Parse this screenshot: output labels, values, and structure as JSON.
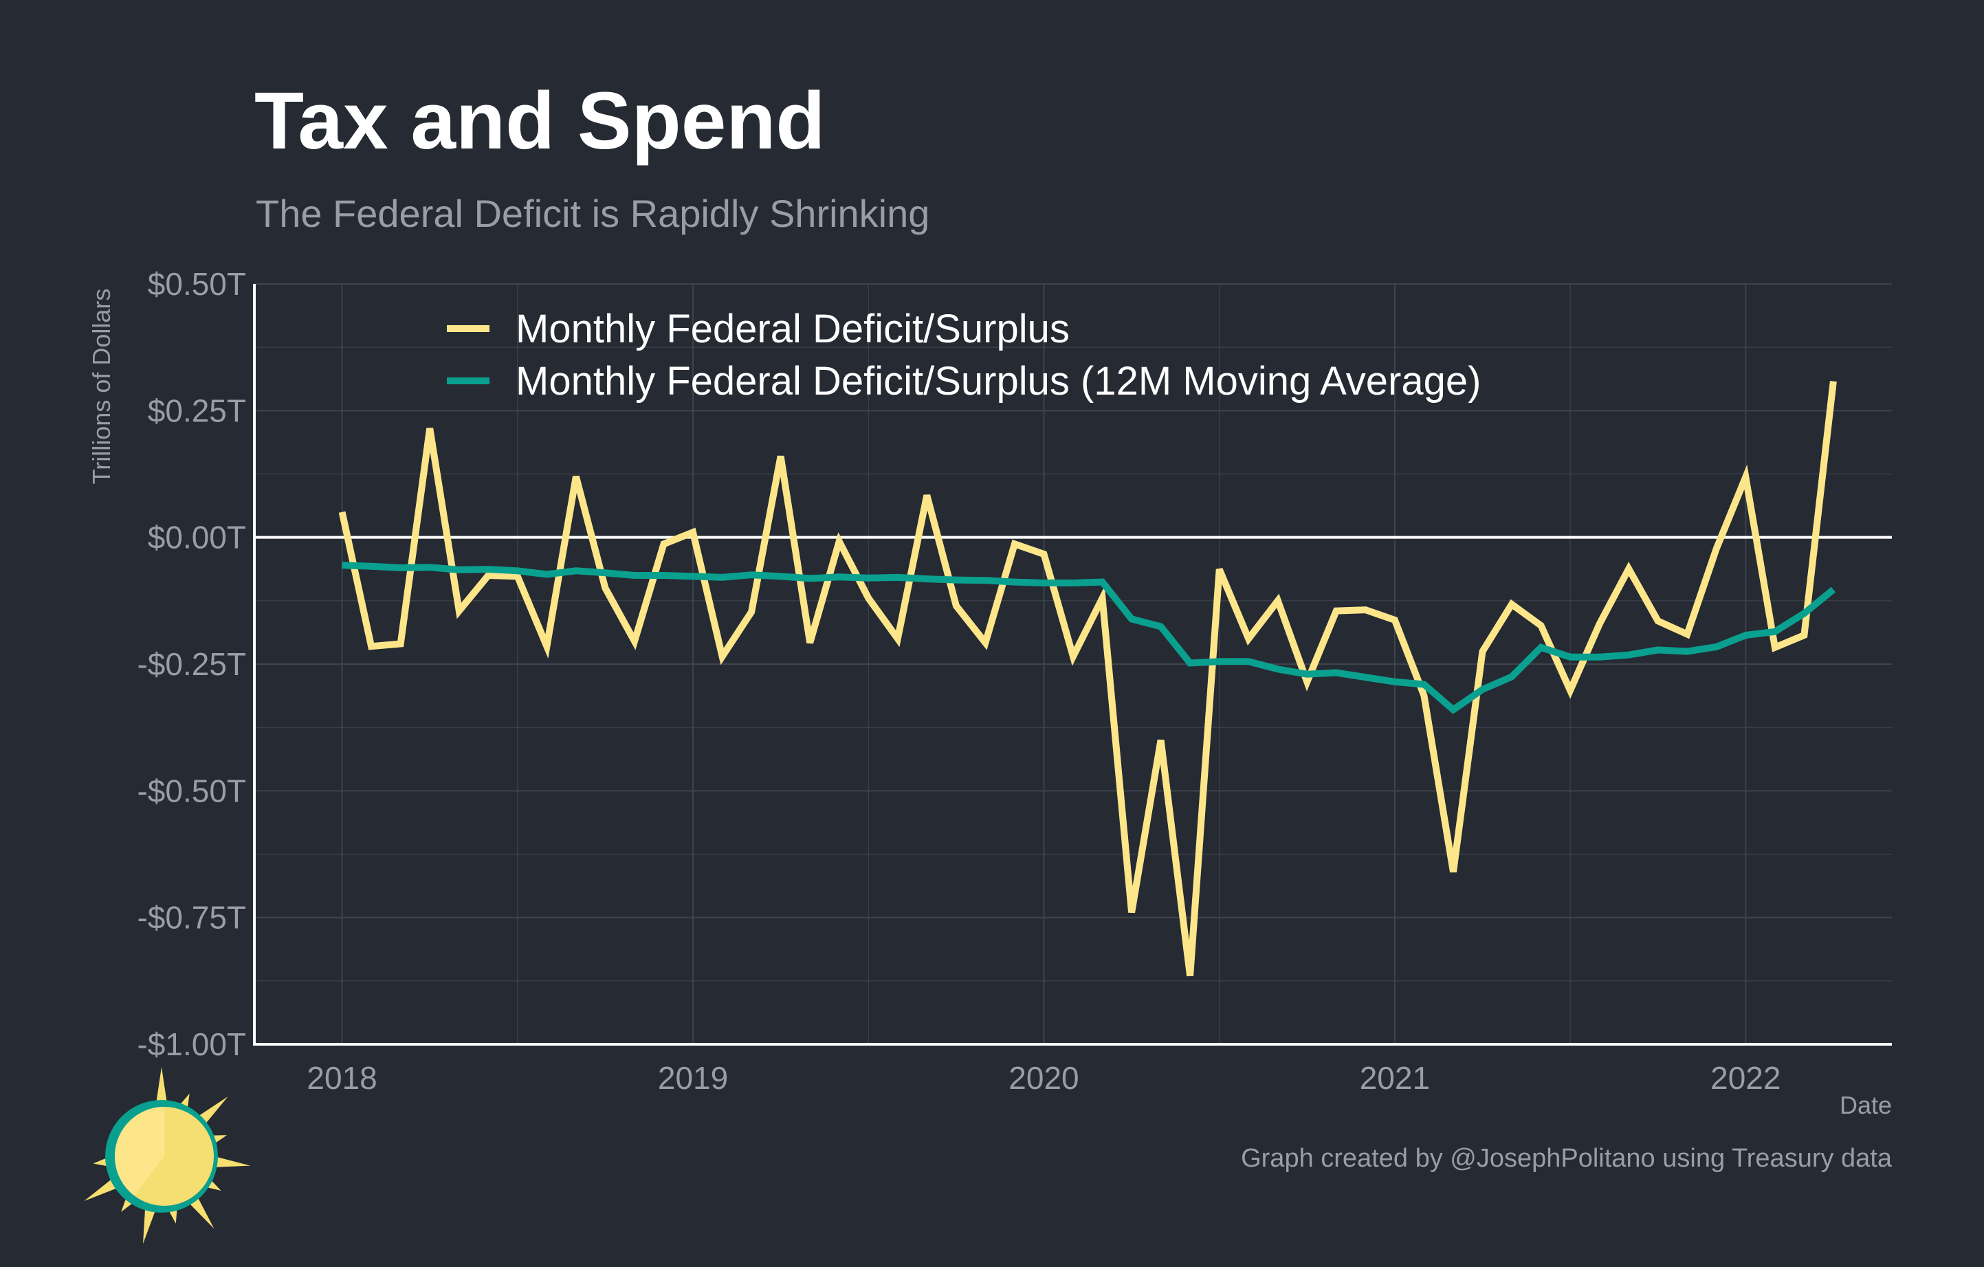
{
  "header": {
    "title": "Tax and Spend",
    "subtitle": "The Federal Deficit is Rapidly Shrinking"
  },
  "footer": {
    "caption": "Graph created by @JosephPolitano using Treasury data"
  },
  "colors": {
    "background": "#252a33",
    "series_monthly": "#fde68a",
    "series_average": "#0aa08f",
    "axis": "#ffffff",
    "grid": "#3e434c",
    "muted_text": "#9a9da3"
  },
  "logo": {
    "icon": "sun-logo-icon"
  },
  "chart_data": {
    "type": "line",
    "title": "Tax and Spend",
    "subtitle": "The Federal Deficit is Rapidly Shrinking",
    "xlabel": "Date",
    "ylabel": "Trillions of Dollars",
    "ylim": [
      -1.0,
      0.5
    ],
    "yticks": [
      0.5,
      0.25,
      0.0,
      -0.25,
      -0.5,
      -0.75,
      -1.0
    ],
    "ytick_labels": [
      "$0.50T",
      "$0.25T",
      "$0.00T",
      "-$0.25T",
      "-$0.50T",
      "-$0.75T",
      "-$1.00T"
    ],
    "xlim": [
      "2017-10",
      "2022-06"
    ],
    "xticks": [
      "2018-01",
      "2019-01",
      "2020-01",
      "2021-01",
      "2022-01"
    ],
    "xtick_labels": [
      "2018",
      "2019",
      "2020",
      "2021",
      "2022"
    ],
    "grid": true,
    "zero_line": true,
    "legend_position": "top-left",
    "x": [
      "2018-01",
      "2018-02",
      "2018-03",
      "2018-04",
      "2018-05",
      "2018-06",
      "2018-07",
      "2018-08",
      "2018-09",
      "2018-10",
      "2018-11",
      "2018-12",
      "2019-01",
      "2019-02",
      "2019-03",
      "2019-04",
      "2019-05",
      "2019-06",
      "2019-07",
      "2019-08",
      "2019-09",
      "2019-10",
      "2019-11",
      "2019-12",
      "2020-01",
      "2020-02",
      "2020-03",
      "2020-04",
      "2020-05",
      "2020-06",
      "2020-07",
      "2020-08",
      "2020-09",
      "2020-10",
      "2020-11",
      "2020-12",
      "2021-01",
      "2021-02",
      "2021-03",
      "2021-04",
      "2021-05",
      "2021-06",
      "2021-07",
      "2021-08",
      "2021-09",
      "2021-10",
      "2021-11",
      "2021-12",
      "2022-01",
      "2022-02",
      "2022-03",
      "2022-04"
    ],
    "series": [
      {
        "name": "Monthly Federal Deficit/Surplus",
        "color": "#fde68a",
        "values": [
          0.05,
          -0.215,
          -0.21,
          0.215,
          -0.145,
          -0.075,
          -0.077,
          -0.215,
          0.12,
          -0.1,
          -0.205,
          -0.013,
          0.01,
          -0.235,
          -0.147,
          0.16,
          -0.208,
          -0.008,
          -0.12,
          -0.2,
          0.083,
          -0.135,
          -0.208,
          -0.013,
          -0.033,
          -0.235,
          -0.12,
          -0.74,
          -0.4,
          -0.865,
          -0.063,
          -0.2,
          -0.125,
          -0.285,
          -0.145,
          -0.143,
          -0.163,
          -0.312,
          -0.66,
          -0.225,
          -0.132,
          -0.174,
          -0.302,
          -0.171,
          -0.062,
          -0.165,
          -0.191,
          -0.022,
          0.119,
          -0.217,
          -0.193,
          0.308
        ]
      },
      {
        "name": "Monthly Federal Deficit/Surplus (12M Moving Average)",
        "color": "#0aa08f",
        "values": [
          -0.055,
          -0.057,
          -0.06,
          -0.059,
          -0.064,
          -0.063,
          -0.066,
          -0.073,
          -0.066,
          -0.07,
          -0.075,
          -0.075,
          -0.077,
          -0.079,
          -0.074,
          -0.077,
          -0.081,
          -0.078,
          -0.08,
          -0.079,
          -0.082,
          -0.084,
          -0.085,
          -0.088,
          -0.09,
          -0.09,
          -0.088,
          -0.161,
          -0.176,
          -0.248,
          -0.245,
          -0.245,
          -0.26,
          -0.27,
          -0.267,
          -0.276,
          -0.285,
          -0.29,
          -0.34,
          -0.3,
          -0.275,
          -0.217,
          -0.236,
          -0.236,
          -0.232,
          -0.222,
          -0.225,
          -0.216,
          -0.193,
          -0.186,
          -0.15,
          -0.103
        ]
      }
    ]
  }
}
